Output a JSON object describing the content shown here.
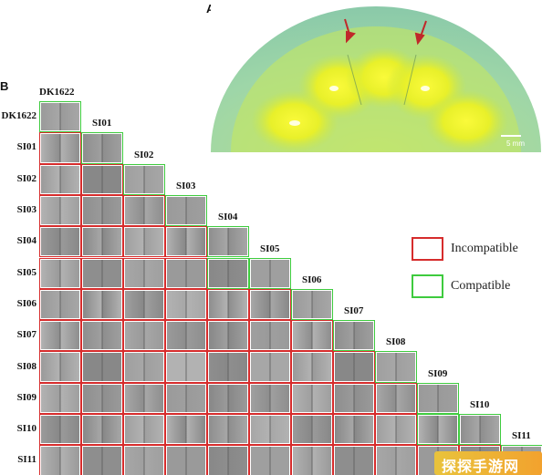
{
  "panel_a": {
    "letter": "A",
    "scale_label": "5 mm"
  },
  "panel_b": {
    "letter": "B",
    "isolates": [
      "DK1622",
      "SI01",
      "SI02",
      "SI03",
      "SI04",
      "SI05",
      "SI06",
      "SI07",
      "SI08",
      "SI09",
      "SI10",
      "SI11"
    ],
    "compatible_cells": [
      [
        0,
        0
      ],
      [
        1,
        1
      ],
      [
        2,
        2
      ],
      [
        3,
        3
      ],
      [
        4,
        4
      ],
      [
        5,
        4
      ],
      [
        5,
        5
      ],
      [
        6,
        6
      ],
      [
        7,
        7
      ],
      [
        8,
        8
      ],
      [
        9,
        9
      ],
      [
        10,
        9
      ],
      [
        10,
        10
      ],
      [
        11,
        11
      ]
    ],
    "legend": {
      "incompatible": "Incompatible",
      "compatible": "Compatible",
      "incompatible_color": "#d62c2c",
      "compatible_color": "#3ecb3e"
    }
  },
  "watermark": {
    "text": "探探手游网"
  }
}
